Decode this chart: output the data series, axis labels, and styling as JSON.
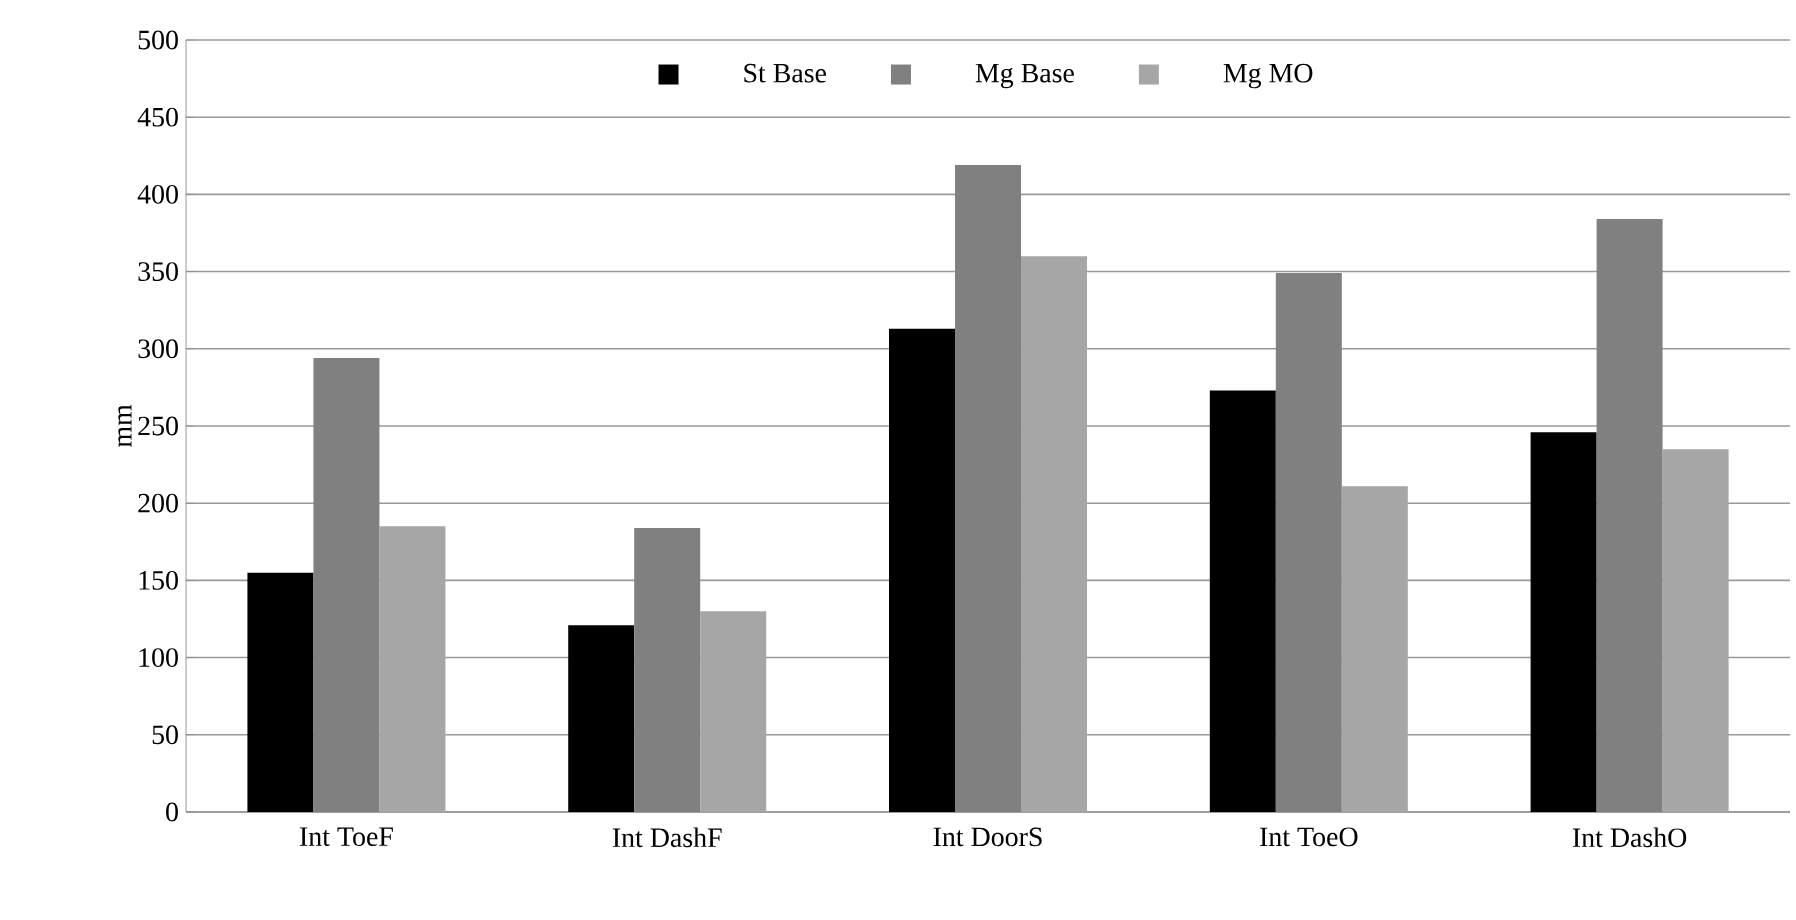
{
  "chart_data": {
    "type": "bar",
    "ylabel": "mm",
    "categories": [
      "Int ToeF",
      "Int DashF",
      "Int DoorS",
      "Int ToeO",
      "Int DashO"
    ],
    "series": [
      {
        "name": "St Base",
        "color": "#000000",
        "values": [
          155,
          121,
          313,
          273,
          246
        ]
      },
      {
        "name": "Mg Base",
        "color": "#808080",
        "values": [
          294,
          184,
          419,
          349,
          384
        ]
      },
      {
        "name": "Mg MO",
        "color": "#a6a6a6",
        "values": [
          185,
          130,
          360,
          211,
          235
        ]
      }
    ],
    "ylim": [
      0,
      500
    ],
    "yticks": [
      0,
      50,
      100,
      150,
      200,
      250,
      300,
      350,
      400,
      450,
      500
    ],
    "grid": "y",
    "legend": "top"
  }
}
